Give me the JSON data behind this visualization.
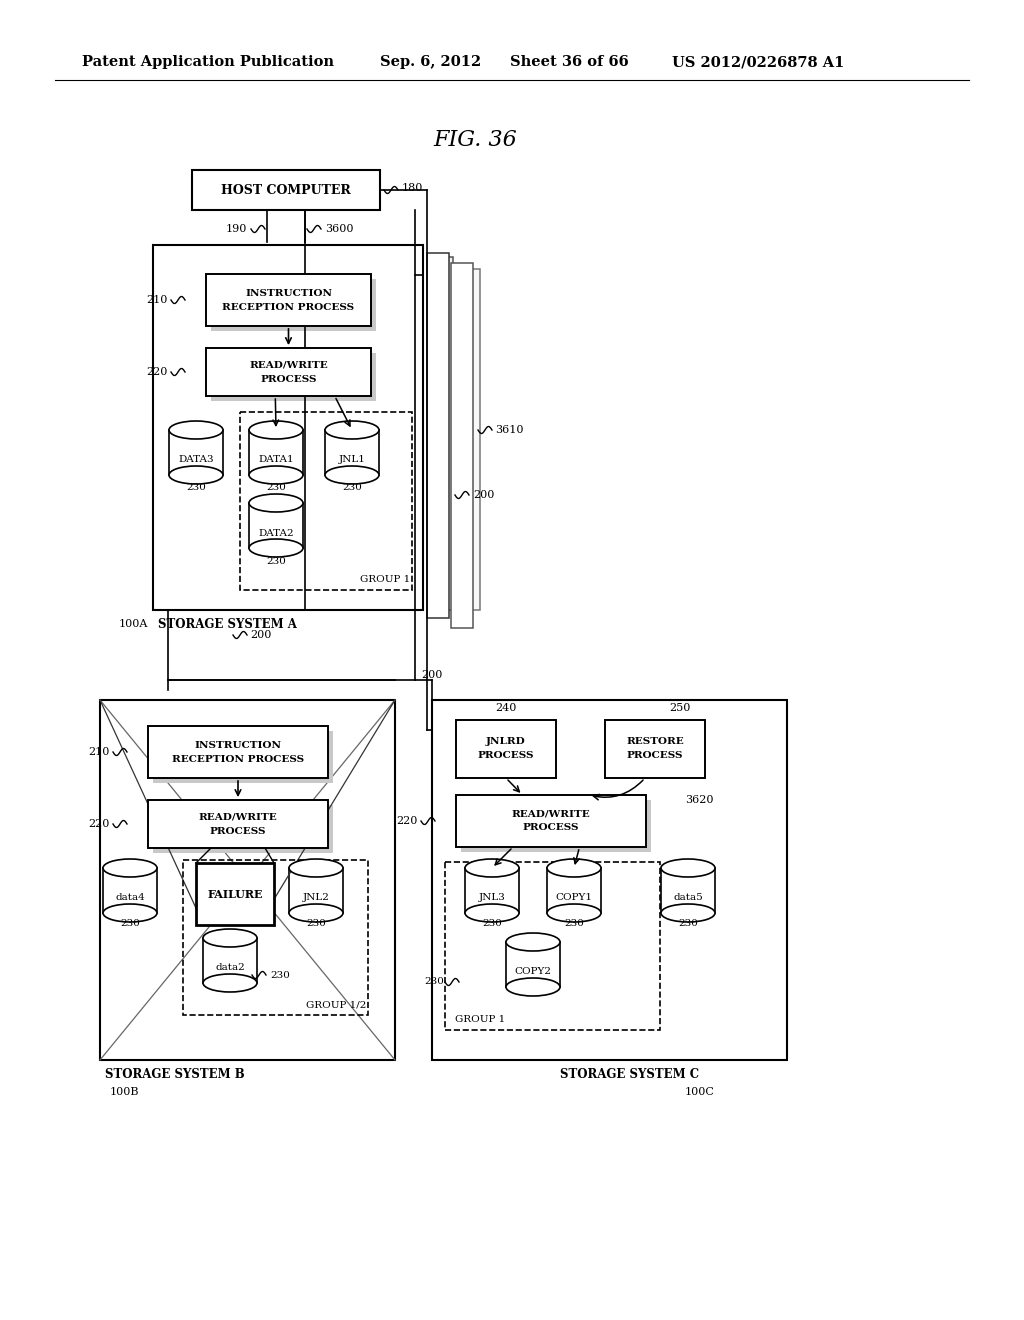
{
  "bg_color": "#ffffff",
  "header_text": "Patent Application Publication",
  "header_date": "Sep. 6, 2012",
  "header_sheet": "Sheet 36 of 66",
  "header_patent": "US 2012/0226878 A1",
  "fig_label": "FIG. 36"
}
